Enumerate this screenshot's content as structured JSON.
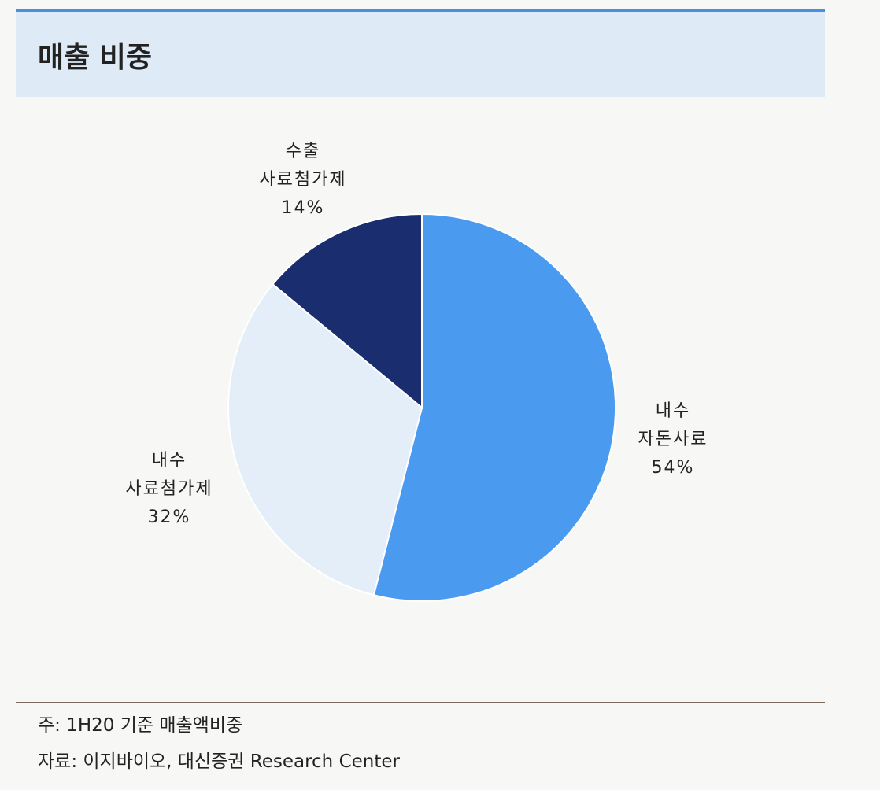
{
  "header": {
    "title": "매출 비중"
  },
  "chart_data": {
    "type": "pie",
    "categories": [
      "내수\n자돈사료",
      "내수\n사료첨가제",
      "수출\n사료첨가제"
    ],
    "values": [
      54,
      32,
      14
    ],
    "value_labels": [
      "54%",
      "32%",
      "14%"
    ],
    "colors": [
      "#4a9af0",
      "#e4eef9",
      "#1a2d6e"
    ]
  },
  "notes": [
    "주: 1H20 기준 매출액비중",
    "자료: 이지바이오, 대신증권 Research Center"
  ]
}
